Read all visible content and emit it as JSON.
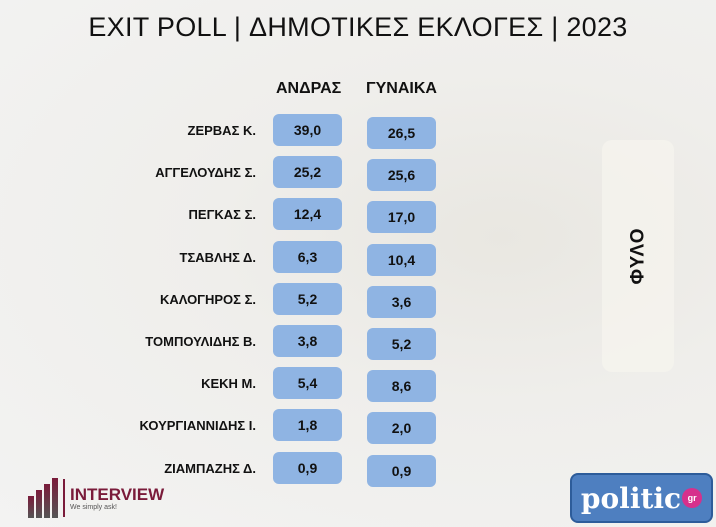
{
  "title": "EXIT POLL | ΔΗΜΟΤΙΚΕΣ ΕΚΛΟΓΕΣ | 2023",
  "columns": {
    "male": "ΑΝΔΡΑΣ",
    "female": "ΓΥΝΑΙΚΑ"
  },
  "side_label": "ΦΥΛΟ",
  "rows": [
    {
      "name": "ΖΕΡΒΑΣ Κ.",
      "male": "39,0",
      "female": "26,5"
    },
    {
      "name": "ΑΓΓΕΛΟΥΔΗΣ Σ.",
      "male": "25,2",
      "female": "25,6"
    },
    {
      "name": "ΠΕΓΚΑΣ Σ.",
      "male": "12,4",
      "female": "17,0"
    },
    {
      "name": "ΤΣΑΒΛΗΣ Δ.",
      "male": "6,3",
      "female": "10,4"
    },
    {
      "name": "ΚΑΛΟΓΗΡΟΣ Σ.",
      "male": "5,2",
      "female": "3,6"
    },
    {
      "name": "ΤΟΜΠΟΥΛΙΔΗΣ Β.",
      "male": "3,8",
      "female": "5,2"
    },
    {
      "name": "ΚΕΚΗ Μ.",
      "male": "5,4",
      "female": "8,6"
    },
    {
      "name": "ΚΟΥΡΓΙΑΝΝΙΔΗΣ Ι.",
      "male": "1,8",
      "female": "2,0"
    },
    {
      "name": "ΖΙΑΜΠΑΖΗΣ Δ.",
      "male": "0,9",
      "female": "0,9"
    }
  ],
  "logos": {
    "interview": "INTERVIEW",
    "interview_tagline": "We simply ask!",
    "politic": "politic",
    "politic_suffix": "gr"
  },
  "colors": {
    "box": "#8fb4e3",
    "interview": "#7a1b3a",
    "politic": "#4e7fc0"
  }
}
